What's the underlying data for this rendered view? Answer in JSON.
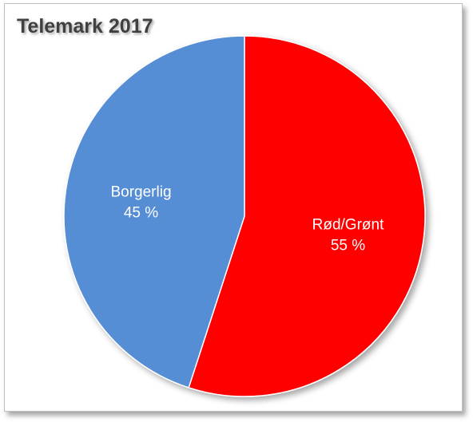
{
  "chart_data": {
    "type": "pie",
    "title": "Telemark 2017",
    "slices": [
      {
        "label": "Rød/Grønt",
        "value": 55,
        "value_label": "55 %",
        "color": "#ff0000"
      },
      {
        "label": "Borgerlig",
        "value": 45,
        "value_label": "45 %",
        "color": "#558ed5"
      }
    ],
    "start_angle_deg": 0,
    "direction": "clockwise",
    "legend": "none",
    "labels_inside": true
  }
}
